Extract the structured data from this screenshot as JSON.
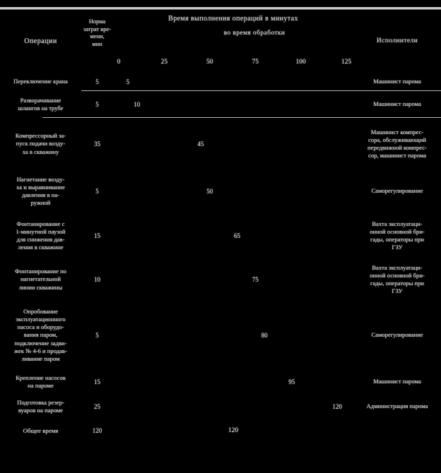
{
  "page": {
    "background": "#000000",
    "text_color": "#d6d6d6",
    "rule_color": "#c9c9c9"
  },
  "header": {
    "operations": "Операции",
    "norm_lines": [
      "Норма",
      "затрат вре-",
      "мени,",
      "мин"
    ],
    "chart_title_line1": "Время выполнения операций в минутах",
    "chart_title_line2": "во время обработки",
    "executors": "Исполнители",
    "scale_ticks": [
      "0",
      "25",
      "50",
      "75",
      "100",
      "125"
    ]
  },
  "rows": [
    {
      "operation_lines": [
        "Переключение крана"
      ],
      "norm": "5",
      "cum": 5,
      "cum_label": "5",
      "executor_lines": [
        "Машинист парома"
      ]
    },
    {
      "operation_lines": [
        "Разворачивание",
        "шлангов на трубе"
      ],
      "norm": "5",
      "cum": 10,
      "cum_label": "10",
      "executor_lines": [
        "Машинист парома"
      ]
    },
    {
      "operation_lines": [
        "Компрессорный за-",
        "пуск подачи возду-",
        "ха в скважину"
      ],
      "norm": "35",
      "cum": 45,
      "cum_label": "45",
      "executor_lines": [
        "Машинист компрес-",
        "сора, обслуживающий",
        "передвижной компрес-",
        "сор, машинист парома"
      ]
    },
    {
      "operation_lines": [
        "Нагнетание возду-",
        "ха и выравнивание",
        "давления в на-",
        "ружной"
      ],
      "norm": "5",
      "cum": 50,
      "cum_label": "50",
      "executor_lines": [
        "Саморегулирование"
      ]
    },
    {
      "operation_lines": [
        "Фонтанирование с",
        "1-минутной паузой",
        "для снижения дав-",
        "ления в скважине"
      ],
      "norm": "15",
      "cum": 65,
      "cum_label": "65",
      "executor_lines": [
        "Вахта эксплуатаци-",
        "онной основной бри-",
        "гады, операторы при",
        "ГЗУ"
      ]
    },
    {
      "operation_lines": [
        "Фонтанирование по",
        "нагнетательной",
        "линии скважины"
      ],
      "norm": "10",
      "cum": 75,
      "cum_label": "75",
      "executor_lines": [
        "Вахта эксплуатаци-",
        "онной основной бри-",
        "гады, операторы при",
        "ГЗУ"
      ]
    },
    {
      "operation_lines": [
        "Опробование",
        "эксплуатационного",
        "насоса и оборудо-",
        "вания паром,",
        "подключение задви-",
        "жек № 4-6 и продав-",
        "ливание паром"
      ],
      "norm": "5",
      "cum": 80,
      "cum_label": "80",
      "executor_lines": [
        "Саморегулирование"
      ]
    },
    {
      "operation_lines": [
        "Крепление насосов",
        "на пароме"
      ],
      "norm": "15",
      "cum": 95,
      "cum_label": "95",
      "executor_lines": [
        "Машинист парома"
      ]
    },
    {
      "operation_lines": [
        "Подготовка резер-",
        "вуаров на пароме"
      ],
      "norm": "25",
      "cum": 120,
      "cum_label": "120",
      "executor_lines": [
        "Администрация парома"
      ]
    }
  ],
  "total": {
    "label": "Общее время",
    "norm": "120",
    "chart_value": "120"
  },
  "chart_data": {
    "type": "table",
    "title": "Время выполнения операций в минутах во время обработки",
    "xlabel": "мин",
    "x_ticks": [
      0,
      25,
      50,
      75,
      100,
      125
    ],
    "x_range": [
      0,
      125
    ],
    "series": [
      {
        "operation": "Переключение крана",
        "norm_min": 5,
        "cumulative_min": 5
      },
      {
        "operation": "Разворачивание шлангов на трубе",
        "norm_min": 5,
        "cumulative_min": 10
      },
      {
        "operation": "Компрессорный запуск подачи воздуха в скважину",
        "norm_min": 35,
        "cumulative_min": 45
      },
      {
        "operation": "Нагнетание воздуха и выравнивание давления",
        "norm_min": 5,
        "cumulative_min": 50
      },
      {
        "operation": "Фонтанирование с 1-минутной паузой",
        "norm_min": 15,
        "cumulative_min": 65
      },
      {
        "operation": "Фонтанирование по нагнетательной линии",
        "norm_min": 10,
        "cumulative_min": 75
      },
      {
        "operation": "Опробование оборудования и продавливание паром",
        "norm_min": 5,
        "cumulative_min": 80
      },
      {
        "operation": "Крепление насосов на пароме",
        "norm_min": 15,
        "cumulative_min": 95
      },
      {
        "operation": "Подготовка резервуаров на пароме",
        "norm_min": 25,
        "cumulative_min": 120
      }
    ],
    "total_min": 120
  }
}
